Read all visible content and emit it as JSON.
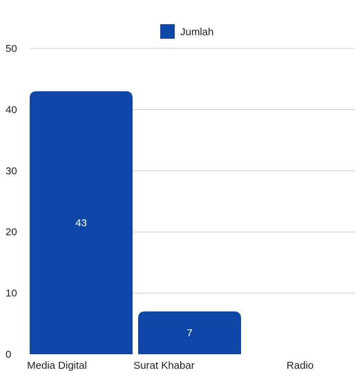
{
  "chart_data": {
    "type": "bar",
    "categories": [
      "Media Digital",
      "Surat Khabar",
      "Radio"
    ],
    "series": [
      {
        "name": "Jumlah",
        "values": [
          43,
          7,
          0
        ],
        "color": "#0f47a8"
      }
    ],
    "data_labels": [
      "43",
      "7",
      ""
    ],
    "ylim": [
      0,
      50
    ],
    "yticks": [
      0,
      10,
      20,
      30,
      40,
      50
    ],
    "grid": true,
    "legend_position": "top-center",
    "xlabel": "",
    "ylabel": "",
    "title": ""
  }
}
